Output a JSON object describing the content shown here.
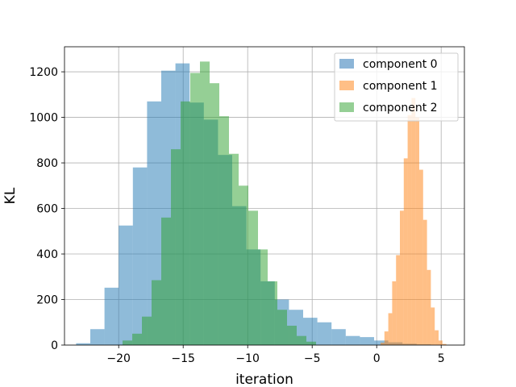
{
  "chart_data": {
    "type": "histogram",
    "xlabel": "iteration",
    "ylabel": "KL",
    "xlim": [
      -24.2,
      6.8
    ],
    "ylim": [
      0,
      1310
    ],
    "xticks": [
      -20,
      -15,
      -10,
      -5,
      0,
      5
    ],
    "yticks": [
      0,
      200,
      400,
      600,
      800,
      1000,
      1200
    ],
    "grid": true,
    "legend_position": "top-right",
    "series": [
      {
        "name": "component 0",
        "color": "#1f77b4",
        "opacity": 0.5,
        "bin_edges": [
          -23.3,
          -22.2,
          -21.1,
          -20.0,
          -18.9,
          -17.8,
          -16.7,
          -15.6,
          -14.5,
          -13.4,
          -12.3,
          -11.2,
          -10.1,
          -9.0,
          -7.9,
          -6.8,
          -5.7,
          -4.6,
          -3.5,
          -2.4,
          -1.3,
          -0.2,
          0.9,
          2.0,
          3.1,
          4.2,
          5.3
        ],
        "counts": [
          8,
          70,
          252,
          525,
          780,
          1070,
          1205,
          1237,
          1065,
          990,
          835,
          610,
          420,
          280,
          200,
          155,
          120,
          100,
          70,
          40,
          35,
          20,
          12,
          6,
          3,
          1
        ]
      },
      {
        "name": "component 1",
        "color": "#ff7f0e",
        "opacity": 0.5,
        "bin_edges": [
          0.3,
          0.6,
          0.9,
          1.2,
          1.5,
          1.8,
          2.1,
          2.4,
          2.7,
          3.0,
          3.3,
          3.6,
          3.9,
          4.2,
          4.5,
          4.8,
          5.1,
          5.4
        ],
        "counts": [
          10,
          60,
          140,
          280,
          395,
          590,
          820,
          1010,
          1085,
          1000,
          770,
          550,
          330,
          165,
          65,
          20,
          5
        ]
      },
      {
        "name": "component 2",
        "color": "#2ca02c",
        "opacity": 0.5,
        "bin_edges": [
          -19.7,
          -18.95,
          -18.2,
          -17.45,
          -16.7,
          -15.95,
          -15.2,
          -14.45,
          -13.7,
          -12.95,
          -12.2,
          -11.45,
          -10.7,
          -9.95,
          -9.2,
          -8.45,
          -7.7,
          -6.95,
          -6.2,
          -5.45,
          -4.7
        ],
        "counts": [
          20,
          50,
          125,
          285,
          560,
          860,
          1070,
          1195,
          1245,
          1150,
          1005,
          840,
          700,
          590,
          420,
          280,
          155,
          85,
          40,
          15
        ]
      }
    ]
  }
}
